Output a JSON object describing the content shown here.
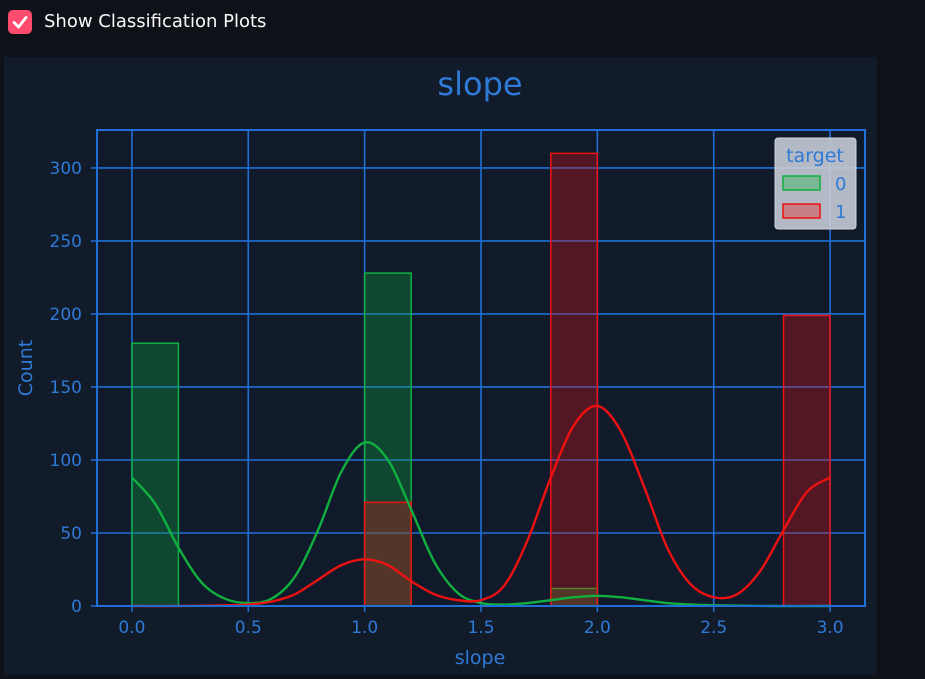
{
  "control": {
    "checkbox_label": "Show Classification Plots",
    "checked": true,
    "accent_color": "#ff4b6e"
  },
  "colors": {
    "page_bg": "#0e1117",
    "panel_bg": "#111b2a",
    "axes_bg": "#111a2b",
    "grid": "#1f6fd6",
    "text": "#2e7ad6",
    "series_0": "#10b040",
    "series_1": "#ee1111"
  },
  "chart_data": {
    "type": "bar",
    "title": "slope",
    "xlabel": "slope",
    "ylabel": "Count",
    "xlim": [
      -0.15,
      3.15
    ],
    "ylim": [
      0,
      326
    ],
    "xticks": [
      "0.0",
      "0.5",
      "1.0",
      "1.5",
      "2.0",
      "2.5",
      "3.0"
    ],
    "yticks": [
      "0",
      "50",
      "100",
      "150",
      "200",
      "250",
      "300"
    ],
    "grid": true,
    "bin_width": 0.2,
    "categories": [
      0,
      1,
      2,
      3
    ],
    "legend": {
      "title": "target",
      "placement": "top-right",
      "entries": [
        "0",
        "1"
      ]
    },
    "series": [
      {
        "name": "0",
        "values": [
          180,
          228,
          12,
          0
        ],
        "kde": [
          [
            0.0,
            88
          ],
          [
            0.1,
            70
          ],
          [
            0.2,
            40
          ],
          [
            0.3,
            16
          ],
          [
            0.4,
            5
          ],
          [
            0.5,
            2
          ],
          [
            0.6,
            5
          ],
          [
            0.7,
            20
          ],
          [
            0.8,
            52
          ],
          [
            0.9,
            92
          ],
          [
            1.0,
            112
          ],
          [
            1.1,
            100
          ],
          [
            1.2,
            66
          ],
          [
            1.3,
            30
          ],
          [
            1.4,
            9
          ],
          [
            1.5,
            2
          ],
          [
            1.6,
            1
          ],
          [
            1.7,
            2
          ],
          [
            1.8,
            4
          ],
          [
            1.9,
            6
          ],
          [
            2.0,
            7
          ],
          [
            2.1,
            6
          ],
          [
            2.2,
            4
          ],
          [
            2.3,
            2
          ],
          [
            2.4,
            1
          ],
          [
            2.5,
            0.5
          ],
          [
            2.75,
            0
          ],
          [
            3.0,
            0
          ]
        ]
      },
      {
        "name": "1",
        "values": [
          0,
          71,
          310,
          199
        ],
        "kde": [
          [
            0.0,
            0
          ],
          [
            0.2,
            0
          ],
          [
            0.4,
            0.5
          ],
          [
            0.5,
            1
          ],
          [
            0.6,
            3
          ],
          [
            0.7,
            8
          ],
          [
            0.8,
            18
          ],
          [
            0.9,
            28
          ],
          [
            1.0,
            32
          ],
          [
            1.1,
            28
          ],
          [
            1.2,
            17
          ],
          [
            1.3,
            8
          ],
          [
            1.4,
            4
          ],
          [
            1.5,
            4
          ],
          [
            1.6,
            14
          ],
          [
            1.7,
            45
          ],
          [
            1.8,
            88
          ],
          [
            1.9,
            124
          ],
          [
            2.0,
            137
          ],
          [
            2.1,
            120
          ],
          [
            2.2,
            82
          ],
          [
            2.3,
            40
          ],
          [
            2.4,
            15
          ],
          [
            2.5,
            6
          ],
          [
            2.6,
            8
          ],
          [
            2.7,
            24
          ],
          [
            2.8,
            52
          ],
          [
            2.9,
            78
          ],
          [
            3.0,
            88
          ]
        ]
      }
    ]
  }
}
